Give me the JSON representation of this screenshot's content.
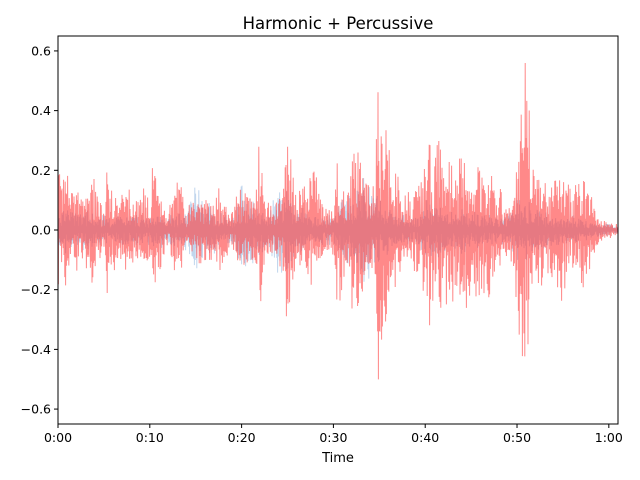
{
  "chart_data": {
    "type": "area",
    "title": "Harmonic + Percussive",
    "xlabel": "Time",
    "ylabel": "",
    "xlim": [
      0,
      61
    ],
    "ylim": [
      -0.65,
      0.65
    ],
    "x_ticks": [
      0,
      10,
      20,
      30,
      40,
      50,
      60
    ],
    "x_tick_labels": [
      "0:00",
      "0:10",
      "0:20",
      "0:30",
      "0:40",
      "0:50",
      "1:00"
    ],
    "y_ticks": [
      -0.6,
      -0.4,
      -0.2,
      0.0,
      0.2,
      0.4,
      0.6
    ],
    "y_tick_labels": [
      "−0.6",
      "−0.4",
      "−0.2",
      "0.0",
      "0.2",
      "0.4",
      "0.6"
    ],
    "grid": false,
    "series": [
      {
        "color": "#a6c4e6",
        "opacity": 0.7,
        "envelope": [
          [
            0.0,
            0.07
          ],
          [
            1.0,
            0.08
          ],
          [
            2.0,
            0.06
          ],
          [
            3.0,
            0.07
          ],
          [
            4.0,
            0.05
          ],
          [
            5.0,
            0.05
          ],
          [
            6.0,
            0.03
          ],
          [
            7.0,
            0.06
          ],
          [
            8.0,
            0.05
          ],
          [
            9.0,
            0.05
          ],
          [
            10.0,
            0.05
          ],
          [
            11.0,
            0.06
          ],
          [
            12.0,
            0.06
          ],
          [
            13.0,
            0.05
          ],
          [
            14.0,
            0.07
          ],
          [
            15.0,
            0.15
          ],
          [
            16.0,
            0.1
          ],
          [
            17.0,
            0.08
          ],
          [
            18.0,
            0.05
          ],
          [
            19.0,
            0.05
          ],
          [
            20.0,
            0.15
          ],
          [
            21.0,
            0.12
          ],
          [
            22.0,
            0.08
          ],
          [
            23.0,
            0.06
          ],
          [
            24.0,
            0.15
          ],
          [
            25.0,
            0.13
          ],
          [
            26.0,
            0.1
          ],
          [
            27.0,
            0.06
          ],
          [
            28.0,
            0.05
          ],
          [
            29.0,
            0.05
          ],
          [
            30.0,
            0.05
          ],
          [
            31.0,
            0.1
          ],
          [
            32.0,
            0.12
          ],
          [
            33.0,
            0.18
          ],
          [
            34.0,
            0.16
          ],
          [
            35.0,
            0.1
          ],
          [
            36.0,
            0.08
          ],
          [
            37.0,
            0.05
          ],
          [
            38.0,
            0.05
          ],
          [
            39.0,
            0.04
          ],
          [
            40.0,
            0.1
          ],
          [
            41.0,
            0.1
          ],
          [
            42.0,
            0.08
          ],
          [
            43.0,
            0.07
          ],
          [
            44.0,
            0.08
          ],
          [
            45.0,
            0.06
          ],
          [
            46.0,
            0.06
          ],
          [
            47.0,
            0.05
          ],
          [
            48.0,
            0.04
          ],
          [
            49.0,
            0.06
          ],
          [
            50.0,
            0.1
          ],
          [
            51.0,
            0.1
          ],
          [
            52.0,
            0.08
          ],
          [
            53.0,
            0.06
          ],
          [
            54.0,
            0.05
          ],
          [
            55.0,
            0.05
          ],
          [
            56.0,
            0.05
          ],
          [
            57.0,
            0.04
          ],
          [
            58.0,
            0.03
          ],
          [
            59.0,
            0.02
          ],
          [
            60.0,
            0.02
          ],
          [
            61.0,
            0.01
          ]
        ]
      },
      {
        "color": "#ff3b3b",
        "opacity": 0.6,
        "envelope": [
          [
            0.0,
            0.18
          ],
          [
            0.5,
            0.2
          ],
          [
            1.0,
            0.22
          ],
          [
            1.5,
            0.12
          ],
          [
            2.0,
            0.14
          ],
          [
            2.5,
            0.1
          ],
          [
            3.0,
            0.14
          ],
          [
            3.5,
            0.16
          ],
          [
            4.0,
            0.2
          ],
          [
            4.5,
            0.1
          ],
          [
            5.0,
            0.06
          ],
          [
            5.5,
            0.27
          ],
          [
            6.0,
            0.14
          ],
          [
            6.5,
            0.12
          ],
          [
            7.0,
            0.14
          ],
          [
            7.5,
            0.13
          ],
          [
            8.0,
            0.14
          ],
          [
            8.5,
            0.12
          ],
          [
            9.0,
            0.1
          ],
          [
            9.5,
            0.16
          ],
          [
            10.0,
            0.1
          ],
          [
            10.5,
            0.29
          ],
          [
            11.0,
            0.14
          ],
          [
            11.5,
            0.1
          ],
          [
            12.0,
            0.06
          ],
          [
            12.5,
            0.12
          ],
          [
            13.0,
            0.16
          ],
          [
            13.5,
            0.14
          ],
          [
            14.0,
            0.06
          ],
          [
            14.5,
            0.1
          ],
          [
            15.0,
            0.08
          ],
          [
            15.5,
            0.14
          ],
          [
            16.0,
            0.1
          ],
          [
            16.5,
            0.1
          ],
          [
            17.0,
            0.1
          ],
          [
            17.5,
            0.14
          ],
          [
            18.0,
            0.12
          ],
          [
            18.5,
            0.08
          ],
          [
            19.0,
            0.06
          ],
          [
            19.5,
            0.12
          ],
          [
            20.0,
            0.14
          ],
          [
            20.5,
            0.14
          ],
          [
            21.0,
            0.12
          ],
          [
            21.5,
            0.1
          ],
          [
            22.0,
            0.34
          ],
          [
            22.5,
            0.14
          ],
          [
            23.0,
            0.1
          ],
          [
            23.5,
            0.08
          ],
          [
            24.0,
            0.1
          ],
          [
            24.5,
            0.16
          ],
          [
            25.0,
            0.33
          ],
          [
            25.5,
            0.2
          ],
          [
            26.0,
            0.18
          ],
          [
            26.5,
            0.2
          ],
          [
            27.0,
            0.12
          ],
          [
            27.5,
            0.18
          ],
          [
            28.0,
            0.2
          ],
          [
            28.5,
            0.12
          ],
          [
            29.0,
            0.08
          ],
          [
            29.5,
            0.08
          ],
          [
            30.0,
            0.1
          ],
          [
            30.5,
            0.28
          ],
          [
            31.0,
            0.18
          ],
          [
            31.5,
            0.2
          ],
          [
            32.0,
            0.26
          ],
          [
            32.5,
            0.32
          ],
          [
            33.0,
            0.26
          ],
          [
            33.5,
            0.2
          ],
          [
            34.0,
            0.16
          ],
          [
            34.5,
            0.14
          ],
          [
            35.0,
            0.59
          ],
          [
            35.5,
            0.38
          ],
          [
            36.0,
            0.28
          ],
          [
            36.5,
            0.2
          ],
          [
            37.0,
            0.18
          ],
          [
            37.5,
            0.16
          ],
          [
            38.0,
            0.12
          ],
          [
            38.5,
            0.14
          ],
          [
            39.0,
            0.16
          ],
          [
            39.5,
            0.14
          ],
          [
            40.0,
            0.3
          ],
          [
            40.5,
            0.32
          ],
          [
            41.0,
            0.26
          ],
          [
            41.5,
            0.3
          ],
          [
            42.0,
            0.2
          ],
          [
            42.5,
            0.28
          ],
          [
            43.0,
            0.24
          ],
          [
            43.5,
            0.18
          ],
          [
            44.0,
            0.3
          ],
          [
            44.5,
            0.26
          ],
          [
            45.0,
            0.2
          ],
          [
            45.5,
            0.22
          ],
          [
            46.0,
            0.26
          ],
          [
            46.5,
            0.2
          ],
          [
            47.0,
            0.28
          ],
          [
            47.5,
            0.2
          ],
          [
            48.0,
            0.16
          ],
          [
            48.5,
            0.1
          ],
          [
            49.0,
            0.12
          ],
          [
            49.5,
            0.1
          ],
          [
            50.0,
            0.26
          ],
          [
            50.5,
            0.45
          ],
          [
            51.0,
            0.59
          ],
          [
            51.5,
            0.3
          ],
          [
            52.0,
            0.22
          ],
          [
            52.5,
            0.2
          ],
          [
            53.0,
            0.16
          ],
          [
            53.5,
            0.14
          ],
          [
            54.0,
            0.2
          ],
          [
            54.5,
            0.28
          ],
          [
            55.0,
            0.22
          ],
          [
            55.5,
            0.16
          ],
          [
            56.0,
            0.12
          ],
          [
            56.5,
            0.16
          ],
          [
            57.0,
            0.2
          ],
          [
            57.5,
            0.18
          ],
          [
            58.0,
            0.12
          ],
          [
            58.5,
            0.08
          ],
          [
            59.0,
            0.04
          ],
          [
            59.5,
            0.03
          ],
          [
            60.0,
            0.03
          ],
          [
            60.5,
            0.02
          ],
          [
            61.0,
            0.02
          ]
        ]
      }
    ]
  }
}
